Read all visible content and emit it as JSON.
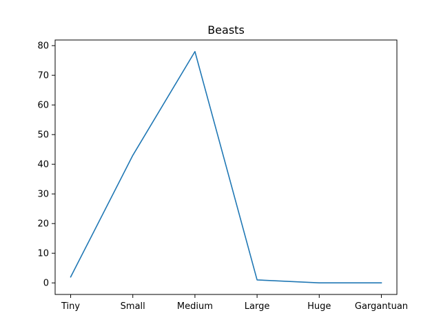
{
  "chart_data": {
    "type": "line",
    "title": "Beasts",
    "xlabel": "",
    "ylabel": "",
    "categories": [
      "Tiny",
      "Small",
      "Medium",
      "Large",
      "Huge",
      "Gargantuan"
    ],
    "series": [
      {
        "values": [
          2,
          43,
          78,
          1,
          0,
          0
        ],
        "color": "#1f77b4"
      }
    ],
    "ylim": [
      -3.9,
      81.9
    ],
    "yticks": [
      0,
      10,
      20,
      30,
      40,
      50,
      60,
      70,
      80
    ],
    "grid": false,
    "legend": "none"
  }
}
